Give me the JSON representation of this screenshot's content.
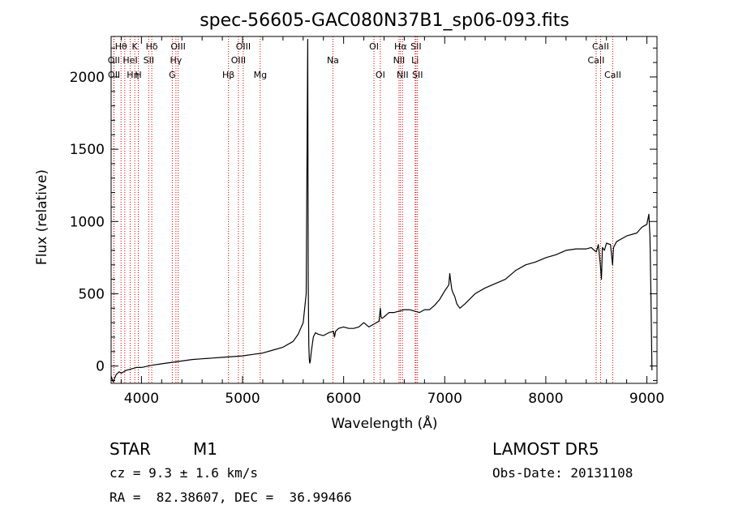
{
  "chart_data": {
    "type": "line",
    "title": "spec-56605-GAC080N37B1_sp06-093.fits",
    "xlabel": "Wavelength (Å)",
    "ylabel": "Flux (relative)",
    "xlim": [
      3700,
      9100
    ],
    "ylim": [
      -120,
      2280
    ],
    "xticks": [
      4000,
      5000,
      6000,
      7000,
      8000,
      9000
    ],
    "yticks": [
      0,
      500,
      1000,
      1500,
      2000
    ],
    "series": [
      {
        "color": "#000000",
        "x": [
          3700,
          3720,
          3750,
          3780,
          3800,
          3850,
          3900,
          3950,
          4000,
          4100,
          4200,
          4300,
          4400,
          4500,
          4600,
          4700,
          4800,
          4900,
          5000,
          5100,
          5200,
          5300,
          5400,
          5500,
          5550,
          5600,
          5630,
          5645,
          5650,
          5655,
          5660,
          5665,
          5670,
          5680,
          5700,
          5720,
          5750,
          5800,
          5850,
          5900,
          5910,
          5920,
          5950,
          6000,
          6050,
          6100,
          6150,
          6200,
          6250,
          6300,
          6350,
          6363,
          6370,
          6380,
          6400,
          6450,
          6500,
          6550,
          6600,
          6650,
          6700,
          6750,
          6800,
          6850,
          6900,
          6950,
          7000,
          7040,
          7050,
          7060,
          7070,
          7080,
          7100,
          7120,
          7150,
          7200,
          7300,
          7400,
          7500,
          7600,
          7700,
          7800,
          7900,
          8000,
          8100,
          8200,
          8300,
          8400,
          8450,
          8480,
          8500,
          8520,
          8540,
          8550,
          8560,
          8580,
          8600,
          8640,
          8660,
          8670,
          8700,
          8800,
          8900,
          8950,
          9000,
          9020,
          9030,
          9040,
          9050
        ],
        "y": [
          -70,
          -110,
          -60,
          -40,
          -50,
          -30,
          -20,
          -10,
          -10,
          5,
          15,
          25,
          35,
          45,
          50,
          55,
          60,
          65,
          70,
          80,
          90,
          110,
          130,
          170,
          220,
          300,
          500,
          2260,
          600,
          150,
          50,
          20,
          30,
          100,
          200,
          230,
          220,
          210,
          230,
          240,
          200,
          240,
          260,
          270,
          260,
          260,
          270,
          300,
          270,
          290,
          310,
          400,
          340,
          330,
          340,
          370,
          370,
          380,
          390,
          390,
          380,
          370,
          390,
          390,
          420,
          460,
          520,
          560,
          640,
          580,
          530,
          510,
          480,
          430,
          400,
          430,
          500,
          540,
          570,
          600,
          660,
          700,
          720,
          750,
          770,
          800,
          810,
          810,
          820,
          800,
          790,
          840,
          700,
          600,
          820,
          800,
          850,
          840,
          700,
          820,
          860,
          900,
          920,
          960,
          980,
          1050,
          900,
          500,
          -30
        ]
      }
    ],
    "lines": [
      {
        "label": "Hθ",
        "x": 3798,
        "row": 1,
        "dx": 0
      },
      {
        "label": "OII",
        "x": 3727,
        "row": 2,
        "dx": 0
      },
      {
        "label": "OII",
        "x": 3729,
        "row": 3,
        "dx": 0
      },
      {
        "label": "Hη",
        "x": 3835,
        "row": 3,
        "dx": 10
      },
      {
        "label": "HeI",
        "x": 3889,
        "row": 2,
        "dx": 0
      },
      {
        "label": "K",
        "x": 3934,
        "row": 1,
        "dx": 0
      },
      {
        "label": "H",
        "x": 3969,
        "row": 3,
        "dx": 0
      },
      {
        "label": "SII",
        "x": 4072,
        "row": 2,
        "dx": 0
      },
      {
        "label": "Hδ",
        "x": 4102,
        "row": 1,
        "dx": 0
      },
      {
        "label": "G",
        "x": 4305,
        "row": 3,
        "dx": 0
      },
      {
        "label": "Hγ",
        "x": 4341,
        "row": 2,
        "dx": 0
      },
      {
        "label": "OIII",
        "x": 4363,
        "row": 1,
        "dx": 0
      },
      {
        "label": "Hβ",
        "x": 4861,
        "row": 3,
        "dx": 0
      },
      {
        "label": "OIII",
        "x": 4959,
        "row": 2,
        "dx": 0
      },
      {
        "label": "OIII",
        "x": 5007,
        "row": 1,
        "dx": 0
      },
      {
        "label": "Mg",
        "x": 5175,
        "row": 3,
        "dx": 0
      },
      {
        "label": "Na",
        "x": 5894,
        "row": 2,
        "dx": 0
      },
      {
        "label": "OI",
        "x": 6300,
        "row": 1,
        "dx": 0
      },
      {
        "label": "OI",
        "x": 6363,
        "row": 3,
        "dx": 0
      },
      {
        "label": "NII",
        "x": 6548,
        "row": 2,
        "dx": 0
      },
      {
        "label": "Hα",
        "x": 6563,
        "row": 1,
        "dx": 0
      },
      {
        "label": "NII",
        "x": 6583,
        "row": 3,
        "dx": 0
      },
      {
        "label": "Li",
        "x": 6707,
        "row": 2,
        "dx": 0
      },
      {
        "label": "SII",
        "x": 6716,
        "row": 1,
        "dx": 0
      },
      {
        "label": "SII",
        "x": 6731,
        "row": 3,
        "dx": 0
      },
      {
        "label": "CaII",
        "x": 8498,
        "row": 2,
        "dx": 0
      },
      {
        "label": "CaII",
        "x": 8542,
        "row": 1,
        "dx": 0
      },
      {
        "label": "CaII",
        "x": 8662,
        "row": 3,
        "dx": 0
      }
    ],
    "line_color": "#cc0000",
    "grid": false,
    "legend": "none"
  },
  "info": {
    "object_class": "STAR",
    "subclass": "M1",
    "survey": "LAMOST DR5",
    "cz": "cz = 9.3 ± 1.6 km/s",
    "obs_date": "Obs-Date: 20131108",
    "coords": "RA =  82.38607, DEC =  36.99466"
  }
}
